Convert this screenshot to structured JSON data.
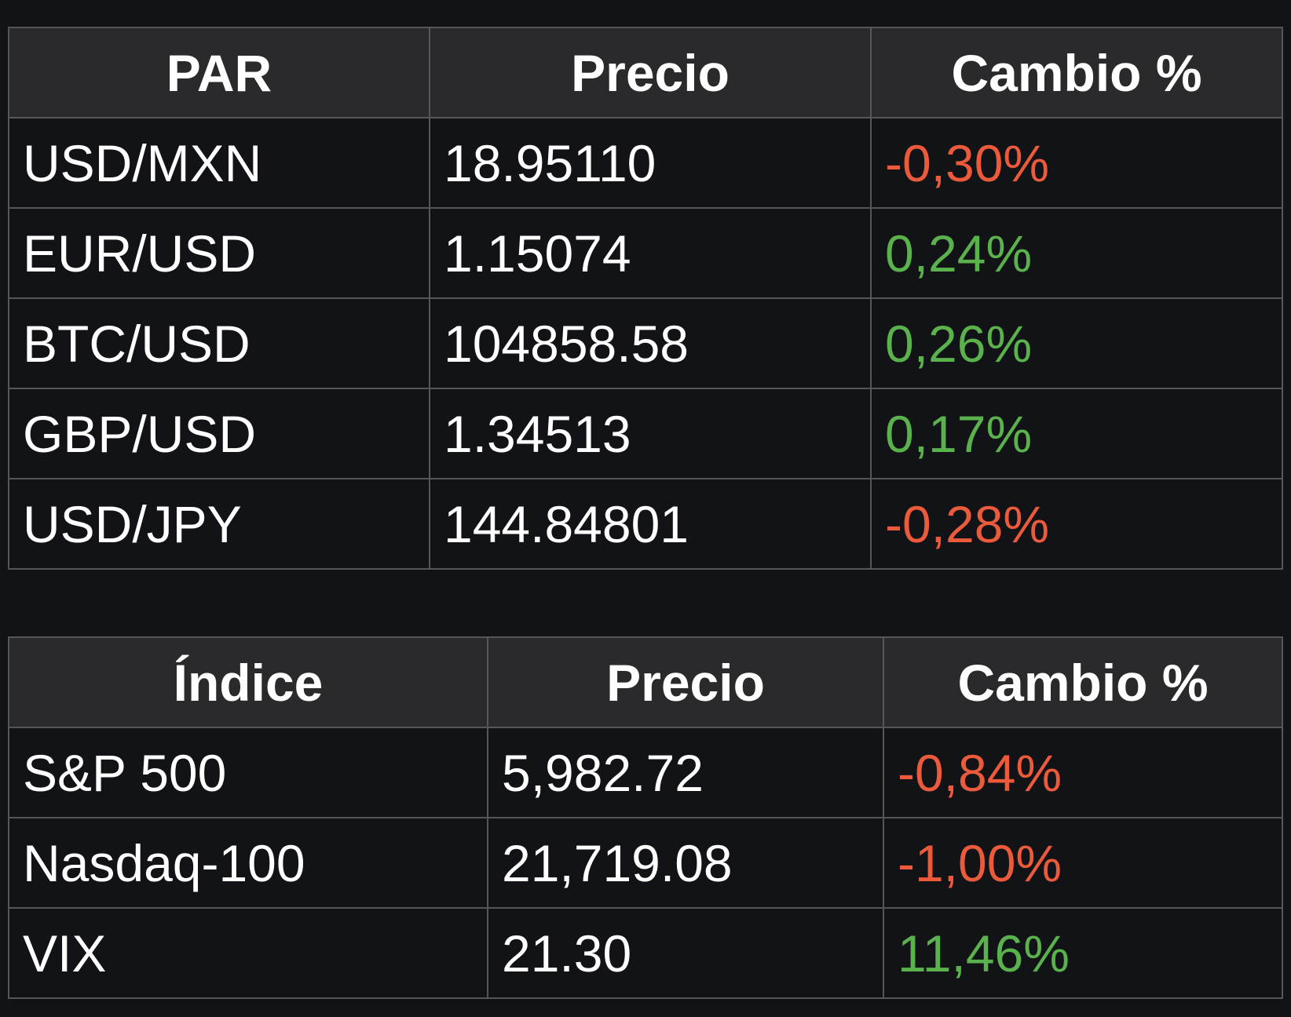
{
  "colors": {
    "background": "#121317",
    "header_background": "#2a2a2c",
    "border": "#54565a",
    "negative": "#ec5a3c",
    "positive": "#5ab24c"
  },
  "pairs_table": {
    "headers": [
      "PAR",
      "Precio",
      "Cambio %"
    ],
    "rows": [
      {
        "name": "USD/MXN",
        "price": "18.95110",
        "change": "-0,30%",
        "trend": "negative"
      },
      {
        "name": "EUR/USD",
        "price": "1.15074",
        "change": "0,24%",
        "trend": "positive"
      },
      {
        "name": "BTC/USD",
        "price": "104858.58",
        "change": "0,26%",
        "trend": "positive"
      },
      {
        "name": "GBP/USD",
        "price": "1.34513",
        "change": "0,17%",
        "trend": "positive"
      },
      {
        "name": "USD/JPY",
        "price": "144.84801",
        "change": "-0,28%",
        "trend": "negative"
      }
    ]
  },
  "indices_table": {
    "headers": [
      "Índice",
      "Precio",
      "Cambio %"
    ],
    "rows": [
      {
        "name": "S&P 500",
        "price": "5,982.72",
        "change": "-0,84%",
        "trend": "negative"
      },
      {
        "name": "Nasdaq-100",
        "price": "21,719.08",
        "change": "-1,00%",
        "trend": "negative"
      },
      {
        "name": "VIX",
        "price": "21.30",
        "change": "11,46%",
        "trend": "positive"
      }
    ]
  }
}
